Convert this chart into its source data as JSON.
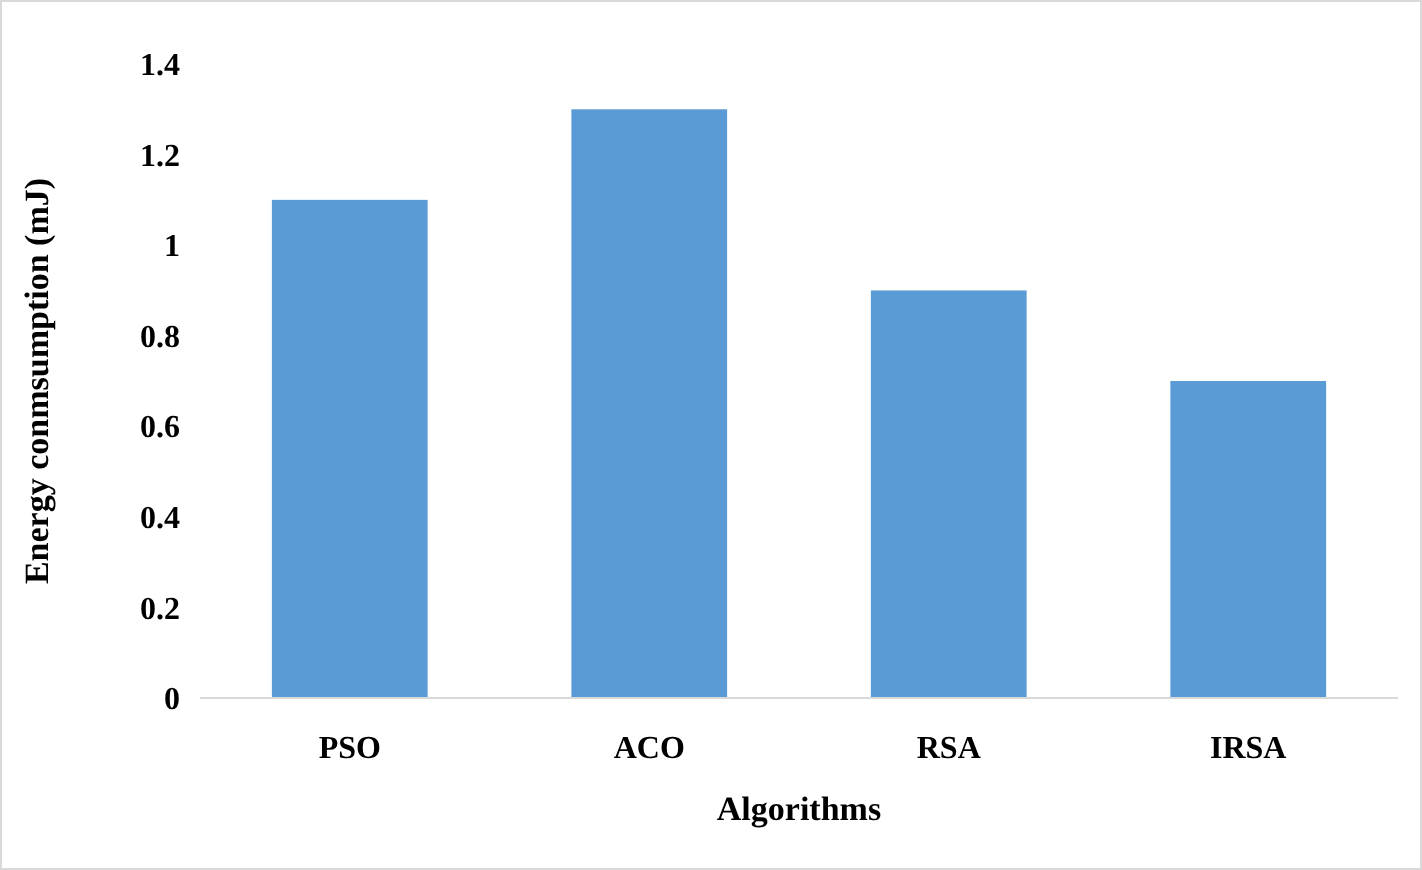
{
  "chart_data": {
    "type": "bar",
    "xlabel": "Algorithms",
    "ylabel": "Energy conmsumption (mJ)",
    "categories": [
      "PSO",
      "ACO",
      "RSA",
      "IRSA"
    ],
    "values": [
      1.1,
      1.3,
      0.9,
      0.7
    ],
    "color": "#5b9bd5",
    "ylim": [
      0,
      1.4
    ],
    "yticks": [
      0,
      0.2,
      0.4,
      0.6,
      0.8,
      1,
      1.2,
      1.4
    ],
    "grid": false
  }
}
